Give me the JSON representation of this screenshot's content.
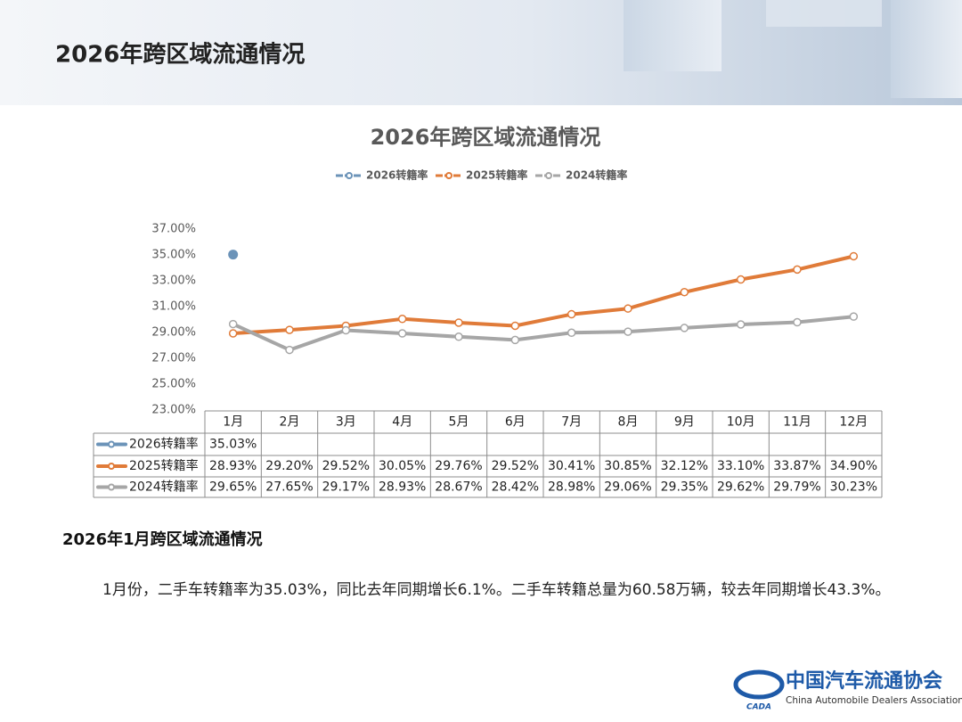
{
  "header": {
    "title": "2026年跨区域流通情况"
  },
  "chart_data": {
    "type": "line",
    "title": "2026年跨区域流通情况",
    "categories": [
      "1月",
      "2月",
      "3月",
      "4月",
      "5月",
      "6月",
      "7月",
      "8月",
      "9月",
      "10月",
      "11月",
      "12月"
    ],
    "series": [
      {
        "name": "2026转籍率",
        "color": "#6b93b8",
        "values": [
          35.03,
          null,
          null,
          null,
          null,
          null,
          null,
          null,
          null,
          null,
          null,
          null
        ],
        "value_labels": [
          "35.03%",
          null,
          null,
          null,
          null,
          null,
          null,
          null,
          null,
          null,
          null,
          null
        ]
      },
      {
        "name": "2025转籍率",
        "color": "#e07b39",
        "values": [
          28.93,
          29.2,
          29.52,
          30.05,
          29.76,
          29.52,
          30.41,
          30.85,
          32.12,
          33.1,
          33.87,
          34.9
        ],
        "value_labels": [
          "28.93%",
          "29.20%",
          "29.52%",
          "30.05%",
          "29.76%",
          "29.52%",
          "30.41%",
          "30.85%",
          "32.12%",
          "33.10%",
          "33.87%",
          "34.90%"
        ]
      },
      {
        "name": "2024转籍率",
        "color": "#a6a6a6",
        "values": [
          29.65,
          27.65,
          29.17,
          28.93,
          28.67,
          28.42,
          28.98,
          29.06,
          29.35,
          29.62,
          29.79,
          30.23
        ],
        "value_labels": [
          "29.65%",
          "27.65%",
          "29.17%",
          "28.93%",
          "28.67%",
          "28.42%",
          "28.98%",
          "29.06%",
          "29.35%",
          "29.62%",
          "29.79%",
          "30.23%"
        ]
      }
    ],
    "ylim": [
      23,
      37
    ],
    "yticks": [
      {
        "value": 23,
        "label": "23.00%"
      },
      {
        "value": 25,
        "label": "25.00%"
      },
      {
        "value": 27,
        "label": "27.00%"
      },
      {
        "value": 29,
        "label": "29.00%"
      },
      {
        "value": 31,
        "label": "31.00%"
      },
      {
        "value": 33,
        "label": "33.00%"
      },
      {
        "value": 35,
        "label": "35.00%"
      },
      {
        "value": 37,
        "label": "37.00%"
      }
    ],
    "grid": false,
    "legend": "top"
  },
  "section": {
    "heading": "2026年1月跨区域流通情况",
    "paragraph": "1月份，二手车转籍率为35.03%，同比去年同期增长6.1%。二手车转籍总量为60.58万辆，较去年同期增长43.3%。"
  },
  "logo": {
    "name": "中国汽车流通协会",
    "english": "China Automobile Dealers Association",
    "mark": "CADA"
  }
}
